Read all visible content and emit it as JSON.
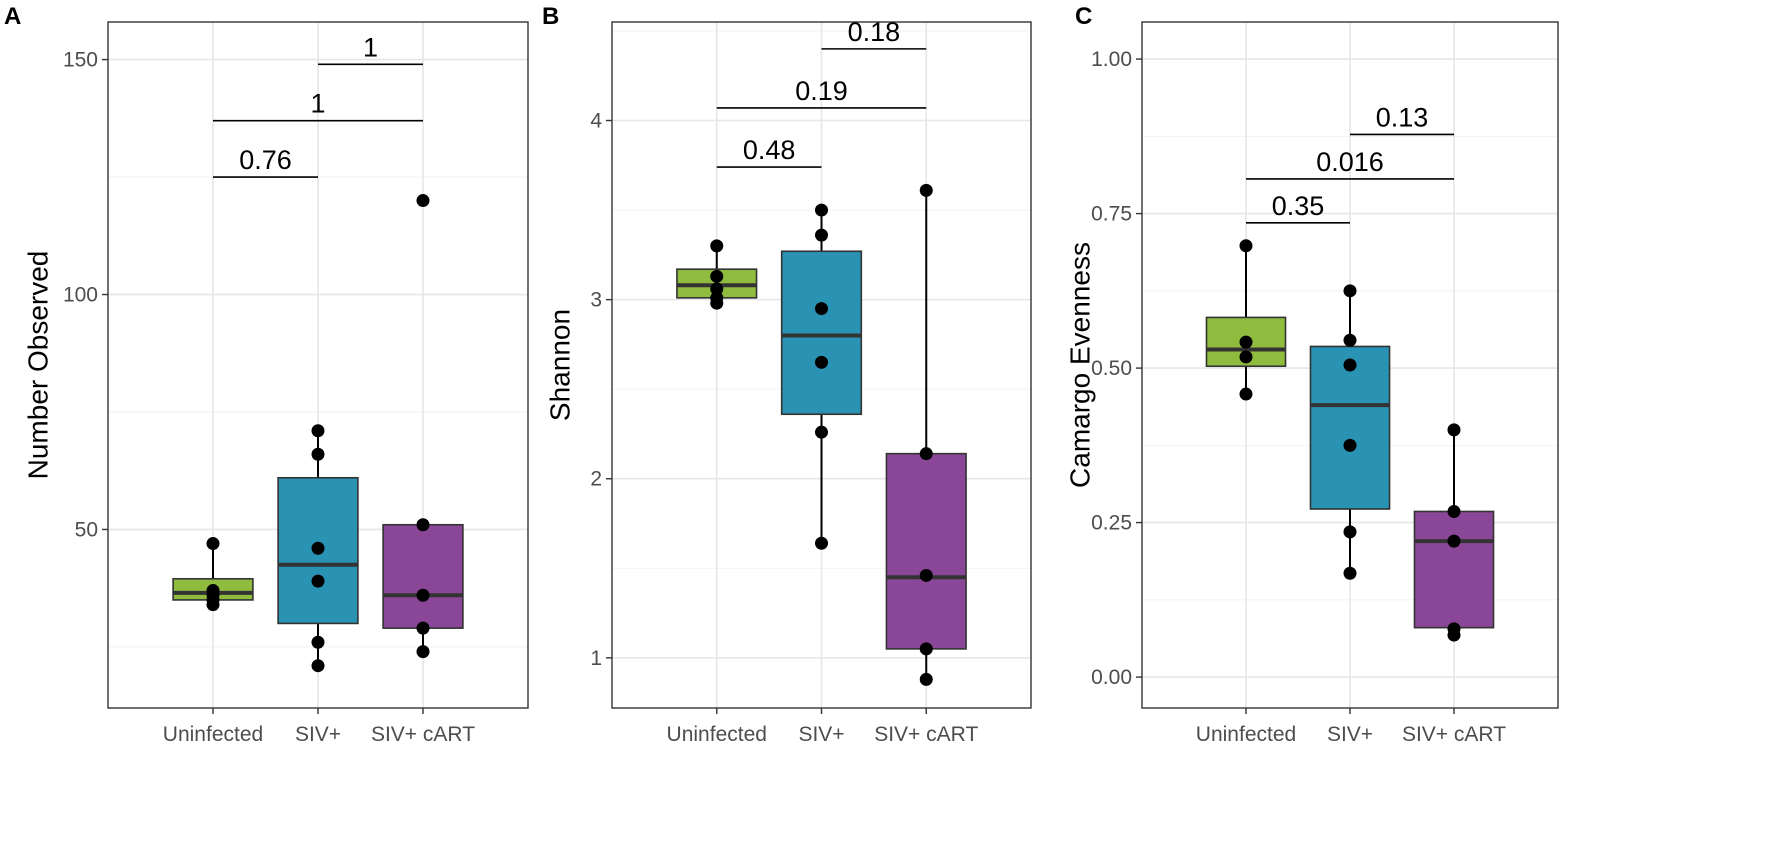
{
  "chart_data": [
    {
      "panel": "A",
      "type": "box",
      "ylabel": "Number Observed",
      "xlabel": "",
      "ylim": [
        12,
        158
      ],
      "yticks": [
        50,
        100,
        150
      ],
      "categories": [
        "Uninfected",
        "SIV+",
        "SIV+ cART"
      ],
      "colors": [
        "#8fbc3f",
        "#2a93b3",
        "#8b4797"
      ],
      "boxes": [
        {
          "q1": 35,
          "median": 36.5,
          "q3": 39.5,
          "whisker_low": 34,
          "whisker_high": 47,
          "points": [
            47,
            37,
            36,
            35,
            34
          ]
        },
        {
          "q1": 30,
          "median": 42.5,
          "q3": 61,
          "whisker_low": 21,
          "whisker_high": 71,
          "points": [
            71,
            66,
            46,
            39,
            26,
            21
          ]
        },
        {
          "q1": 29,
          "median": 36,
          "q3": 51,
          "whisker_low": 24,
          "whisker_high": 51,
          "points": [
            120,
            51,
            36,
            29,
            24
          ]
        }
      ],
      "comparisons": [
        {
          "from": 0,
          "to": 1,
          "label": "0.76",
          "y": 125
        },
        {
          "from": 0,
          "to": 2,
          "label": "1",
          "y": 137
        },
        {
          "from": 1,
          "to": 2,
          "label": "1",
          "y": 149
        }
      ]
    },
    {
      "panel": "B",
      "type": "box",
      "ylabel": "Shannon",
      "xlabel": "",
      "ylim": [
        0.72,
        4.55
      ],
      "yticks": [
        1,
        2,
        3,
        4
      ],
      "categories": [
        "Uninfected",
        "SIV+",
        "SIV+ cART"
      ],
      "colors": [
        "#8fbc3f",
        "#2a93b3",
        "#8b4797"
      ],
      "boxes": [
        {
          "q1": 3.01,
          "median": 3.08,
          "q3": 3.17,
          "whisker_low": 2.98,
          "whisker_high": 3.3,
          "points": [
            3.3,
            3.13,
            3.06,
            3.01,
            2.98
          ]
        },
        {
          "q1": 2.36,
          "median": 2.8,
          "q3": 3.27,
          "whisker_low": 1.64,
          "whisker_high": 3.5,
          "points": [
            3.5,
            3.36,
            2.95,
            2.65,
            2.26,
            1.64
          ]
        },
        {
          "q1": 1.05,
          "median": 1.45,
          "q3": 2.14,
          "whisker_low": 0.88,
          "whisker_high": 3.61,
          "points": [
            3.61,
            2.14,
            1.46,
            1.05,
            0.88
          ]
        }
      ],
      "comparisons": [
        {
          "from": 0,
          "to": 1,
          "label": "0.48",
          "y": 3.74
        },
        {
          "from": 0,
          "to": 2,
          "label": "0.19",
          "y": 4.07
        },
        {
          "from": 1,
          "to": 2,
          "label": "0.18",
          "y": 4.4
        }
      ]
    },
    {
      "panel": "C",
      "type": "box",
      "ylabel": "Camargo Evenness",
      "xlabel": "",
      "ylim": [
        -0.05,
        1.06
      ],
      "yticks": [
        0.0,
        0.25,
        0.5,
        0.75,
        1.0
      ],
      "ytick_labels": [
        "0.00",
        "0.25",
        "0.50",
        "0.75",
        "1.00"
      ],
      "categories": [
        "Uninfected",
        "SIV+",
        "SIV+ cART"
      ],
      "colors": [
        "#8fbc3f",
        "#2a93b3",
        "#8b4797"
      ],
      "boxes": [
        {
          "q1": 0.503,
          "median": 0.53,
          "q3": 0.582,
          "whisker_low": 0.458,
          "whisker_high": 0.698,
          "points": [
            0.698,
            0.542,
            0.518,
            0.458
          ]
        },
        {
          "q1": 0.272,
          "median": 0.44,
          "q3": 0.535,
          "whisker_low": 0.168,
          "whisker_high": 0.625,
          "points": [
            0.625,
            0.545,
            0.505,
            0.375,
            0.235,
            0.168
          ]
        },
        {
          "q1": 0.08,
          "median": 0.22,
          "q3": 0.268,
          "whisker_low": 0.068,
          "whisker_high": 0.4,
          "points": [
            0.4,
            0.268,
            0.22,
            0.078,
            0.068
          ]
        }
      ],
      "comparisons": [
        {
          "from": 0,
          "to": 1,
          "label": "0.35",
          "y": 0.735
        },
        {
          "from": 0,
          "to": 2,
          "label": "0.016",
          "y": 0.806
        },
        {
          "from": 1,
          "to": 2,
          "label": "0.13",
          "y": 0.878
        }
      ]
    }
  ]
}
